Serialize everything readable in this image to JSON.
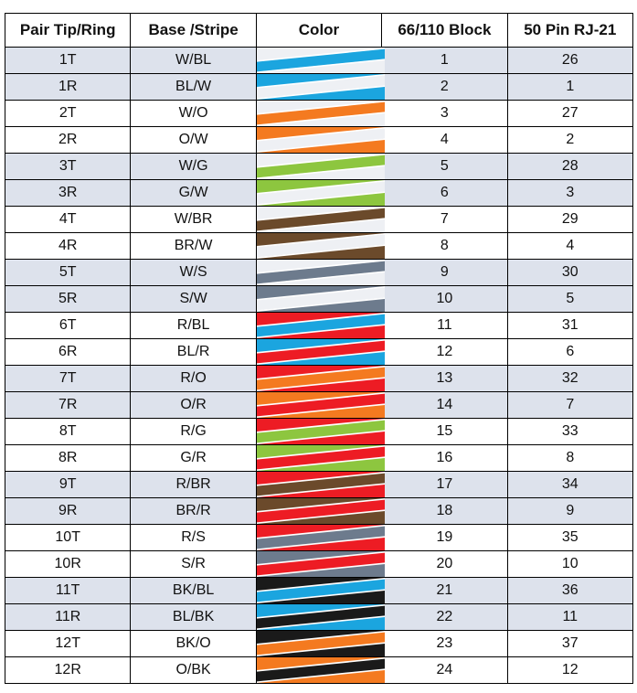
{
  "table": {
    "headers": [
      "Pair Tip/Ring",
      "Base /Stripe",
      "Color",
      "66/110 Block",
      "50 Pin RJ-21"
    ],
    "rows": [
      [
        "1T",
        "W/BL",
        1,
        26
      ],
      [
        "1R",
        "BL/W",
        2,
        1
      ],
      [
        "2T",
        "W/O",
        3,
        27
      ],
      [
        "2R",
        "O/W",
        4,
        2
      ],
      [
        "3T",
        "W/G",
        5,
        28
      ],
      [
        "3R",
        "G/W",
        6,
        3
      ],
      [
        "4T",
        "W/BR",
        7,
        29
      ],
      [
        "4R",
        "BR/W",
        8,
        4
      ],
      [
        "5T",
        "W/S",
        9,
        30
      ],
      [
        "5R",
        "S/W",
        10,
        5
      ],
      [
        "6T",
        "R/BL",
        11,
        31
      ],
      [
        "6R",
        "BL/R",
        12,
        6
      ],
      [
        "7T",
        "R/O",
        13,
        32
      ],
      [
        "7R",
        "O/R",
        14,
        7
      ],
      [
        "8T",
        "R/G",
        15,
        33
      ],
      [
        "8R",
        "G/R",
        16,
        8
      ],
      [
        "9T",
        "R/BR",
        17,
        34
      ],
      [
        "9R",
        "BR/R",
        18,
        9
      ],
      [
        "10T",
        "R/S",
        19,
        35
      ],
      [
        "10R",
        "S/R",
        20,
        10
      ],
      [
        "11T",
        "BK/BL",
        21,
        36
      ],
      [
        "11R",
        "BL/BK",
        22,
        11
      ],
      [
        "12T",
        "BK/O",
        23,
        37
      ],
      [
        "12R",
        "O/BK",
        24,
        12
      ]
    ],
    "swatch_colors": {
      "W": "#eef0f4",
      "BL": "#1ba5df",
      "O": "#f47a20",
      "G": "#8dc63f",
      "BR": "#6b4a2b",
      "S": "#6d7b8d",
      "R": "#ed1c24",
      "BK": "#1a1a1a"
    }
  }
}
